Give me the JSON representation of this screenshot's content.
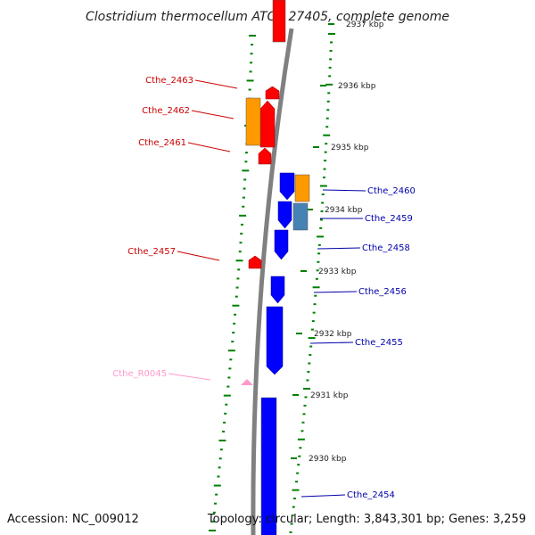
{
  "title": "Clostridium thermocellum ATCC 27405, complete genome",
  "footer": {
    "accession": "Accession: NC_009012",
    "summary": "Topology: circular; Length: 3,843,301 bp; Genes: 3,259"
  },
  "colors": {
    "forward_cds": "#ff0000",
    "reverse_cds": "#0000ff",
    "orange_feature": "#ff9900",
    "steel_feature": "#4682b4",
    "rna": "#ff99cc",
    "backbone": "#808080",
    "gc_ticks": "#008000",
    "forward_label": "#cc0000",
    "reverse_label": "#0000aa"
  },
  "axis_ticks": [
    "2937 kbp",
    "2936 kbp",
    "2935 kbp",
    "2934 kbp",
    "2933 kbp",
    "2932 kbp",
    "2931 kbp",
    "2930 kbp"
  ],
  "labels_left": [
    {
      "text": "Cthe_2463",
      "kind": "forward"
    },
    {
      "text": "Cthe_2462",
      "kind": "forward"
    },
    {
      "text": "Cthe_2461",
      "kind": "forward"
    },
    {
      "text": "Cthe_2457",
      "kind": "forward"
    },
    {
      "text": "Cthe_R0045",
      "kind": "rna"
    }
  ],
  "labels_right": [
    {
      "text": "Cthe_2460",
      "kind": "reverse"
    },
    {
      "text": "Cthe_2459",
      "kind": "reverse"
    },
    {
      "text": "Cthe_2458",
      "kind": "reverse"
    },
    {
      "text": "Cthe_2456",
      "kind": "reverse"
    },
    {
      "text": "Cthe_2455",
      "kind": "reverse"
    },
    {
      "text": "Cthe_2454",
      "kind": "reverse"
    }
  ]
}
